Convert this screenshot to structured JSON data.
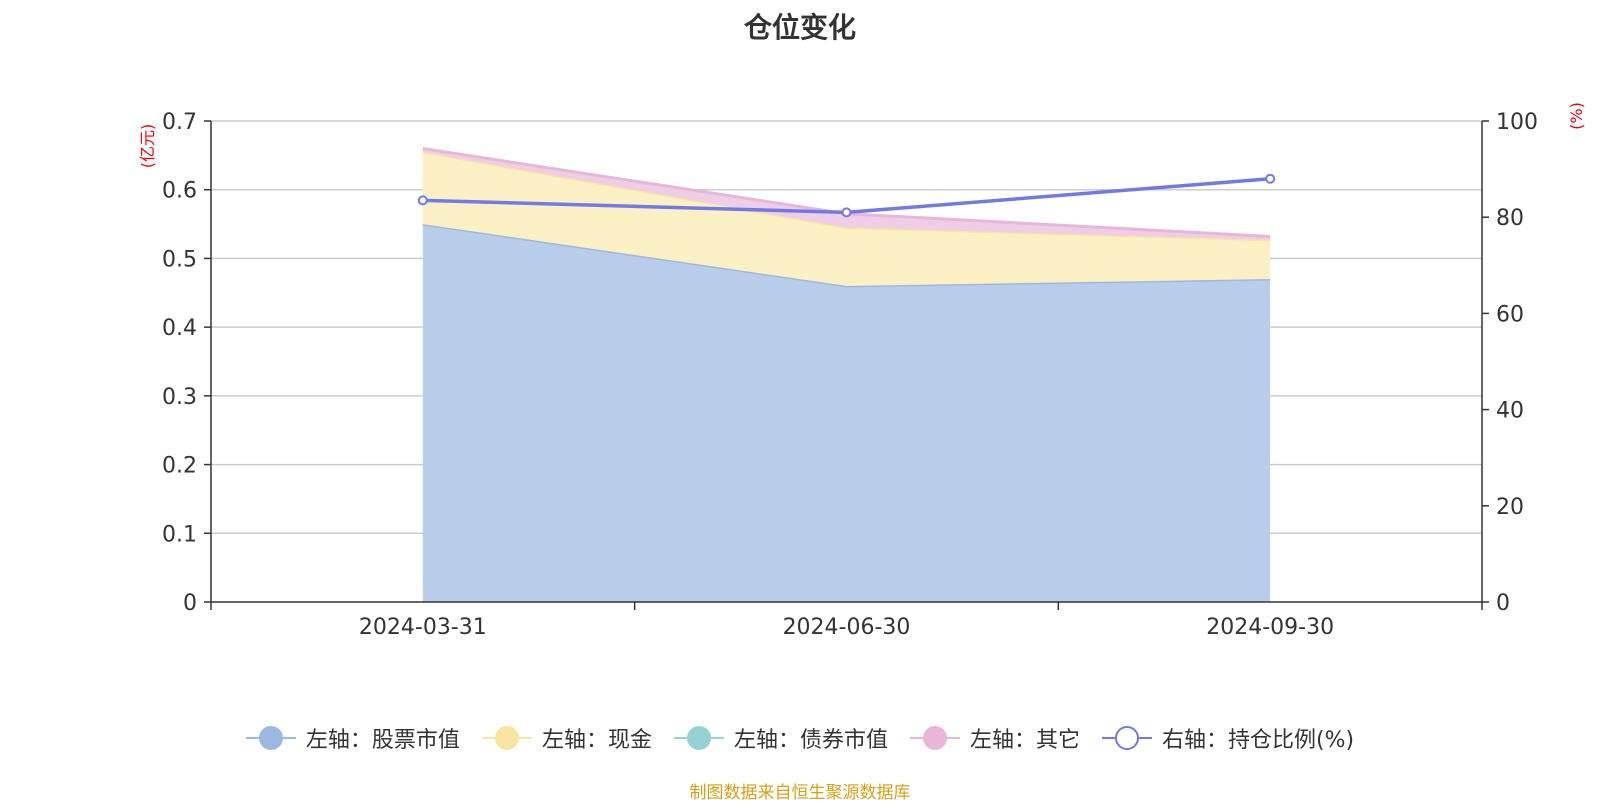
{
  "chart_data": {
    "type": "area",
    "title": "仓位变化",
    "categories": [
      "2024-03-31",
      "2024-06-30",
      "2024-09-30"
    ],
    "left_axis": {
      "unit": "(亿元)",
      "ylim": [
        0,
        0.7
      ],
      "ticks": [
        "0",
        "0.1",
        "0.2",
        "0.3",
        "0.4",
        "0.5",
        "0.6",
        "0.7"
      ]
    },
    "right_axis": {
      "unit": "(%)",
      "ylim": [
        0,
        100
      ],
      "ticks": [
        "0",
        "20",
        "40",
        "60",
        "80",
        "100"
      ]
    },
    "stack_series": [
      {
        "name": "左轴：股票市值",
        "values": [
          0.55,
          0.46,
          0.47
        ],
        "color": "#9cb8e0",
        "fill": "#b8cdea"
      },
      {
        "name": "左轴：现金",
        "values": [
          0.105,
          0.085,
          0.057
        ],
        "color": "#f7e5a1",
        "fill": "#fbf0c3"
      },
      {
        "name": "左轴：债券市值",
        "values": [
          0,
          0,
          0
        ],
        "color": "#94d3d3",
        "fill": "#b9e3e3"
      },
      {
        "name": "左轴：其它",
        "values": [
          0.005,
          0.02,
          0.005
        ],
        "color": "#e8b6d9",
        "fill": "#f0cde6"
      }
    ],
    "line_series": {
      "name": "右轴：持仓比例(%)",
      "values": [
        83.5,
        81,
        88
      ],
      "color": "#7179e6"
    },
    "grid": true,
    "legend_position": "bottom"
  },
  "source_note": "制图数据来自恒生聚源数据库"
}
